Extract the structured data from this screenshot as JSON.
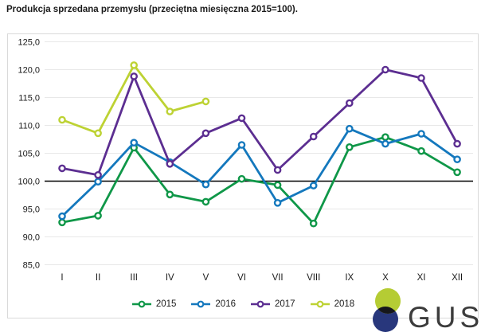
{
  "title": "Produkcja sprzedana przemysłu (przeciętna miesięczna 2015=100).",
  "chart_data": {
    "type": "line",
    "categories": [
      "I",
      "II",
      "III",
      "IV",
      "V",
      "VI",
      "VII",
      "VIII",
      "IX",
      "X",
      "XI",
      "XII"
    ],
    "series": [
      {
        "name": "2015",
        "color": "#0f9748",
        "values": [
          92.6,
          93.8,
          106.0,
          97.6,
          96.3,
          100.4,
          99.3,
          92.4,
          106.1,
          107.9,
          105.4,
          101.6
        ]
      },
      {
        "name": "2016",
        "color": "#1478bd",
        "values": [
          93.7,
          99.9,
          106.9,
          103.4,
          99.4,
          106.5,
          96.1,
          99.2,
          109.4,
          106.7,
          108.5,
          103.9
        ]
      },
      {
        "name": "2017",
        "color": "#5c2e91",
        "values": [
          102.3,
          101.1,
          118.8,
          103.1,
          108.6,
          111.3,
          102.0,
          108.0,
          114.0,
          120.0,
          118.5,
          106.7
        ]
      },
      {
        "name": "2018",
        "color": "#bdd233",
        "values": [
          111.0,
          108.6,
          120.8,
          112.5,
          114.3
        ]
      }
    ],
    "title": "Produkcja sprzedana przemysłu (przeciętna miesięczna 2015=100).",
    "xlabel": "",
    "ylabel": "",
    "ylim": [
      85,
      125
    ],
    "ytick_step": 5,
    "y_tick_labels": [
      "85,0",
      "90,0",
      "95,0",
      "100,0",
      "105,0",
      "110,0",
      "115,0",
      "120,0",
      "125,0"
    ],
    "baseline_value": 100,
    "grid": "horizontal",
    "legend_position": "bottom"
  },
  "colors": {
    "grid_line": "#e8e8e8",
    "box_border": "#d9d9d9",
    "baseline": "#000000",
    "axis_text": "#1a1a1a"
  },
  "logo": {
    "text": "GUS",
    "top_circle_color": "#b5cc34",
    "bottom_circle_color": "#28377c",
    "overlap_color": "#16171c",
    "text_color": "#3c3c3c"
  }
}
